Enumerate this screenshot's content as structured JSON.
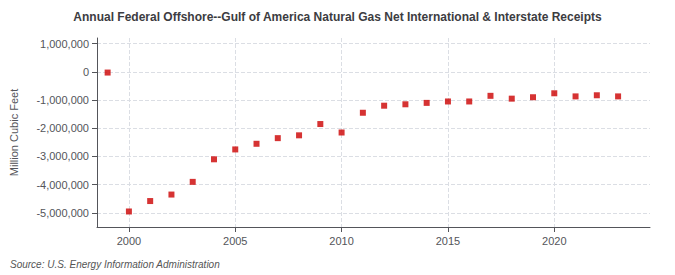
{
  "chart_data": {
    "type": "scatter",
    "title": "Annual Federal Offshore--Gulf of America Natural Gas Net International & Interstate Receipts",
    "ylabel": "Million Cubic Feet",
    "annotation": "Source: U.S. Energy Information Administration",
    "color": "#CC0000",
    "marker": "square",
    "x": [
      1999,
      2000,
      2001,
      2002,
      2003,
      2004,
      2005,
      2006,
      2007,
      2008,
      2009,
      2010,
      2011,
      2012,
      2013,
      2014,
      2015,
      2016,
      2017,
      2018,
      2019,
      2020,
      2021,
      2022,
      2023
    ],
    "values": [
      -25000,
      -4950000,
      -4580000,
      -4350000,
      -3900000,
      -3100000,
      -2750000,
      -2550000,
      -2350000,
      -2250000,
      -1850000,
      -2150000,
      -1450000,
      -1200000,
      -1150000,
      -1100000,
      -1050000,
      -1050000,
      -850000,
      -950000,
      -900000,
      -760000,
      -870000,
      -830000,
      -870000
    ],
    "xlim": [
      1998.5,
      2024.5
    ],
    "xticks": [
      2000,
      2005,
      2010,
      2015,
      2020
    ],
    "ylim": [
      -5500000,
      1200000
    ],
    "yticks": [
      {
        "value": 1000000,
        "label": "1,000,000"
      },
      0,
      {
        "value": -1000000,
        "label": "-1,000,000"
      },
      {
        "value": -2000000,
        "label": "-2,000,000"
      },
      {
        "value": -3000000,
        "label": "-3,000,000"
      },
      {
        "value": -4000000,
        "label": "-4,000,000"
      },
      {
        "value": -5000000,
        "label": "-5,000,000"
      }
    ],
    "grid": true
  }
}
